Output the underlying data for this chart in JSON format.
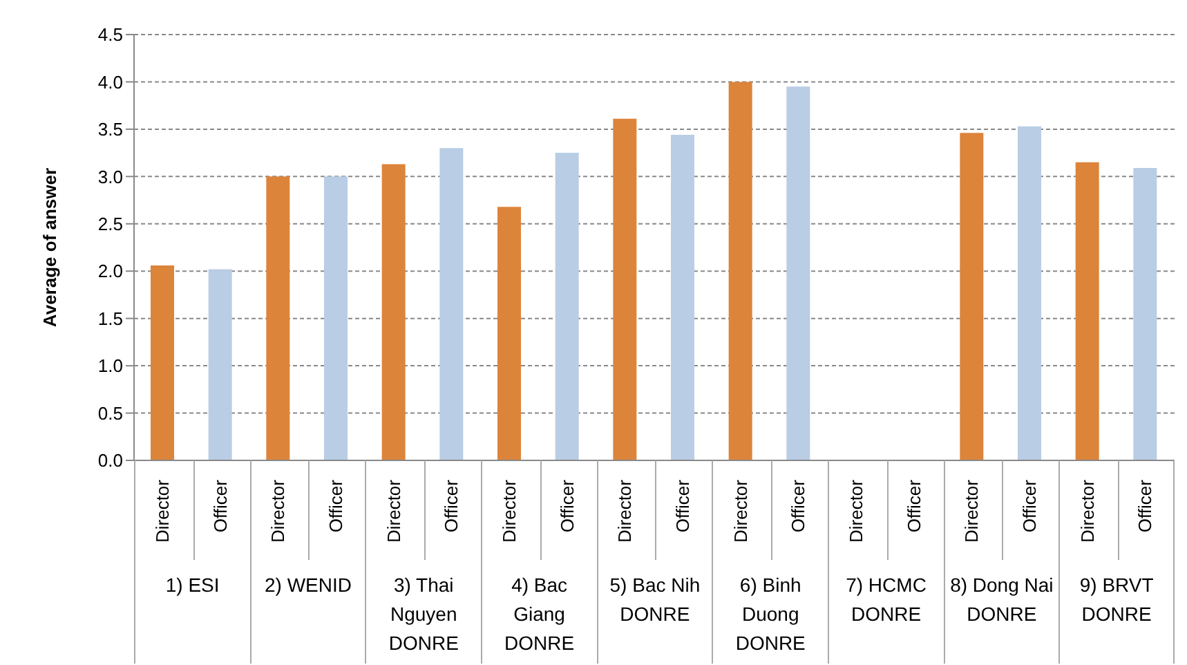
{
  "chart_data": {
    "type": "bar",
    "ylabel": "Average of answer",
    "categories": [
      "Director",
      "Officer",
      "Director",
      "Officer",
      "Director",
      "Officer",
      "Director",
      "Officer",
      "Director",
      "Officer",
      "Director",
      "Officer",
      "Director",
      "Officer",
      "Director",
      "Officer",
      "Director",
      "Officer"
    ],
    "values": [
      2.06,
      2.02,
      3.0,
      3.0,
      3.13,
      3.3,
      2.68,
      3.25,
      3.61,
      3.44,
      4.0,
      3.95,
      null,
      null,
      3.46,
      3.53,
      3.15,
      3.09
    ],
    "colors": [
      "#dd843b",
      "#b9cde5",
      "#dd843b",
      "#b9cde5",
      "#dd843b",
      "#b9cde5",
      "#dd843b",
      "#b9cde5",
      "#dd843b",
      "#b9cde5",
      "#dd843b",
      "#b9cde5",
      "#dd843b",
      "#b9cde5",
      "#dd843b",
      "#b9cde5",
      "#dd843b",
      "#b9cde5"
    ],
    "ylim": [
      0,
      4.5
    ],
    "yticks": [
      {
        "value": 0,
        "label": "0.0"
      },
      {
        "value": 0.5,
        "label": "0.5"
      },
      {
        "value": 1,
        "label": "1.0"
      },
      {
        "value": 1.5,
        "label": "1.5"
      },
      {
        "value": 2,
        "label": "2.0"
      },
      {
        "value": 2.5,
        "label": "2.5"
      },
      {
        "value": 3,
        "label": "3.0"
      },
      {
        "value": 3.5,
        "label": "3.5"
      },
      {
        "value": 4,
        "label": "4.0"
      },
      {
        "value": 4.5,
        "label": "4.5"
      }
    ],
    "grid": "y",
    "annotations": [
      "1) ESI",
      "2) WENID",
      "3) Thai Nguyen DONRE",
      "4) Bac Giang DONRE",
      "5) Bac Nih DONRE",
      "6) Binh Duong DONRE",
      "7) HCMC DONRE",
      "8) Dong Nai DONRE",
      "9) BRVT DONRE"
    ]
  }
}
